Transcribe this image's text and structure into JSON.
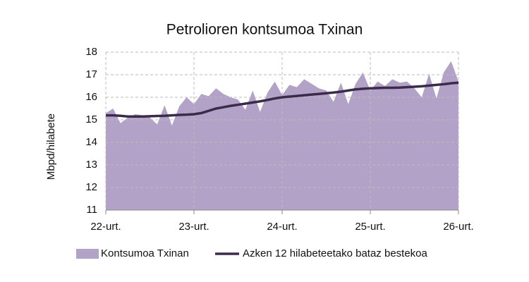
{
  "chart_data": {
    "type": "area",
    "title": "Petrolioren kontsumoa  Txinan",
    "y_label": "Mbpd/hilabete",
    "categories": [
      "22-urt.",
      null,
      null,
      null,
      null,
      null,
      null,
      null,
      null,
      null,
      null,
      null,
      "23-urt.",
      null,
      null,
      null,
      null,
      null,
      null,
      null,
      null,
      null,
      null,
      null,
      "24-urt.",
      null,
      null,
      null,
      null,
      null,
      null,
      null,
      null,
      null,
      null,
      null,
      "25-urt.",
      null,
      null,
      null,
      null,
      null,
      null,
      null,
      null,
      null,
      null,
      null,
      "26-urt."
    ],
    "series": [
      {
        "name": "Kontsumoa Txinan",
        "type": "area",
        "color": "#b3a2c8",
        "values": [
          15.3,
          15.5,
          14.85,
          15.1,
          15.25,
          15.2,
          15.1,
          14.8,
          15.65,
          14.75,
          15.6,
          16.0,
          15.7,
          16.15,
          16.05,
          16.4,
          16.15,
          16.0,
          15.9,
          15.45,
          16.3,
          15.35,
          16.2,
          16.7,
          16.1,
          16.55,
          16.45,
          16.8,
          16.6,
          16.4,
          16.3,
          15.8,
          16.65,
          15.7,
          16.6,
          17.1,
          16.3,
          16.7,
          16.5,
          16.8,
          16.65,
          16.7,
          16.4,
          16.0,
          17.05,
          15.95,
          17.1,
          17.6,
          16.7
        ]
      },
      {
        "name": "Azken 12 hilabeteetako bataz bestekoa",
        "type": "line",
        "color": "#3b2a4a",
        "values": [
          15.2,
          15.2,
          15.18,
          15.15,
          15.15,
          15.15,
          15.16,
          15.17,
          15.18,
          15.2,
          15.22,
          15.23,
          15.25,
          15.3,
          15.4,
          15.5,
          15.56,
          15.62,
          15.67,
          15.72,
          15.77,
          15.82,
          15.88,
          15.95,
          16.0,
          16.03,
          16.06,
          16.09,
          16.12,
          16.15,
          16.18,
          16.21,
          16.25,
          16.3,
          16.35,
          16.38,
          16.4,
          16.41,
          16.42,
          16.42,
          16.43,
          16.45,
          16.47,
          16.49,
          16.52,
          16.55,
          16.58,
          16.62,
          16.65
        ]
      }
    ],
    "ylim": [
      11,
      18
    ],
    "yticks": [
      11,
      12,
      13,
      14,
      15,
      16,
      17,
      18
    ],
    "grid": true,
    "legend": "bottom"
  }
}
